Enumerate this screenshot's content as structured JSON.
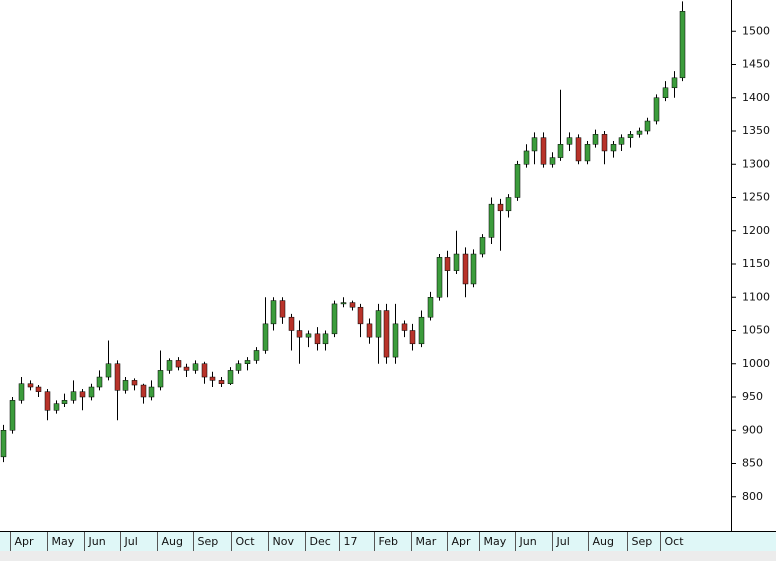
{
  "chart_data": {
    "type": "candlestick",
    "x": [
      2,
      7,
      12,
      17,
      22,
      27,
      32,
      37,
      42,
      47,
      52,
      57,
      62,
      67,
      72,
      77,
      82,
      87,
      92,
      97,
      102,
      107,
      112,
      117,
      122,
      127,
      132,
      137,
      142,
      147,
      152,
      157,
      162,
      167,
      172,
      177,
      182,
      187,
      192,
      197,
      202,
      207,
      212,
      217,
      222,
      227,
      232,
      237,
      242,
      247,
      252,
      257,
      262,
      267,
      272,
      277,
      282,
      287,
      292,
      297,
      302,
      307,
      312,
      317,
      322,
      327,
      332,
      337,
      342,
      347,
      352,
      357,
      362,
      367,
      372,
      377,
      382,
      387,
      392
    ],
    "open": [
      860,
      900,
      945,
      970,
      965,
      958,
      930,
      940,
      945,
      958,
      950,
      965,
      980,
      1000,
      960,
      975,
      968,
      950,
      965,
      990,
      1005,
      995,
      990,
      1000,
      980,
      975,
      970,
      990,
      1000,
      1005,
      1020,
      1060,
      1095,
      1070,
      1050,
      1040,
      1045,
      1030,
      1045,
      1090,
      1092,
      1085,
      1060,
      1040,
      1080,
      1010,
      1060,
      1050,
      1030,
      1070,
      1100,
      1160,
      1140,
      1165,
      1120,
      1165,
      1190,
      1240,
      1230,
      1250,
      1300,
      1320,
      1340,
      1300,
      1310,
      1330,
      1340,
      1305,
      1330,
      1345,
      1320,
      1330,
      1340,
      1345,
      1350,
      1365,
      1400,
      1415,
      1430
    ],
    "high": [
      908,
      950,
      980,
      975,
      968,
      962,
      945,
      955,
      975,
      962,
      970,
      990,
      1035,
      1005,
      980,
      978,
      970,
      975,
      1020,
      1008,
      1010,
      1000,
      1005,
      1003,
      988,
      980,
      995,
      1005,
      1010,
      1025,
      1100,
      1100,
      1100,
      1075,
      1065,
      1050,
      1055,
      1050,
      1095,
      1100,
      1095,
      1090,
      1068,
      1090,
      1090,
      1090,
      1065,
      1060,
      1080,
      1108,
      1165,
      1170,
      1200,
      1175,
      1172,
      1195,
      1250,
      1248,
      1255,
      1305,
      1330,
      1348,
      1348,
      1318,
      1412,
      1348,
      1345,
      1335,
      1352,
      1350,
      1335,
      1345,
      1350,
      1355,
      1370,
      1405,
      1425,
      1440,
      1545
    ],
    "low": [
      852,
      895,
      940,
      960,
      950,
      915,
      925,
      935,
      940,
      930,
      945,
      960,
      975,
      915,
      955,
      960,
      940,
      945,
      960,
      985,
      990,
      980,
      985,
      970,
      965,
      965,
      968,
      985,
      990,
      1000,
      1015,
      1050,
      1060,
      1020,
      1000,
      1025,
      1020,
      1020,
      1040,
      1085,
      1080,
      1040,
      1030,
      1000,
      1000,
      1000,
      1040,
      1020,
      1025,
      1065,
      1095,
      1100,
      1135,
      1100,
      1115,
      1160,
      1180,
      1170,
      1220,
      1245,
      1295,
      1300,
      1295,
      1295,
      1305,
      1320,
      1300,
      1300,
      1325,
      1300,
      1310,
      1320,
      1325,
      1340,
      1345,
      1360,
      1395,
      1400,
      1425
    ],
    "close": [
      900,
      945,
      970,
      965,
      958,
      930,
      940,
      945,
      958,
      950,
      965,
      980,
      1000,
      960,
      975,
      968,
      950,
      965,
      990,
      1005,
      995,
      990,
      1000,
      980,
      975,
      970,
      990,
      1000,
      1005,
      1020,
      1060,
      1095,
      1070,
      1050,
      1040,
      1045,
      1030,
      1045,
      1090,
      1092,
      1085,
      1060,
      1040,
      1080,
      1010,
      1060,
      1050,
      1030,
      1070,
      1100,
      1160,
      1140,
      1165,
      1120,
      1165,
      1190,
      1240,
      1230,
      1250,
      1300,
      1320,
      1340,
      1300,
      1310,
      1330,
      1340,
      1305,
      1330,
      1345,
      1320,
      1330,
      1340,
      1345,
      1350,
      1365,
      1400,
      1415,
      1430,
      1530
    ],
    "up_color": "#3c9c3c",
    "down_color": "#b8332a",
    "xlim": [
      0,
      420
    ],
    "xticks": [
      {
        "value": 6,
        "label": "Apr"
      },
      {
        "value": 27,
        "label": "May"
      },
      {
        "value": 48,
        "label": "Jun"
      },
      {
        "value": 69,
        "label": "Jul"
      },
      {
        "value": 90,
        "label": "Aug"
      },
      {
        "value": 111,
        "label": "Sep"
      },
      {
        "value": 133,
        "label": "Oct"
      },
      {
        "value": 154,
        "label": "Nov"
      },
      {
        "value": 175,
        "label": "Dec"
      },
      {
        "value": 195,
        "label": "17"
      },
      {
        "value": 215,
        "label": "Feb"
      },
      {
        "value": 236,
        "label": "Mar"
      },
      {
        "value": 257,
        "label": "Apr"
      },
      {
        "value": 275,
        "label": "May"
      },
      {
        "value": 296,
        "label": "Jun"
      },
      {
        "value": 317,
        "label": "Jul"
      },
      {
        "value": 338,
        "label": "Aug"
      },
      {
        "value": 360,
        "label": "Sep"
      },
      {
        "value": 379,
        "label": "Oct"
      }
    ],
    "ylim": [
      750,
      1547
    ],
    "yticks": [
      800,
      850,
      900,
      950,
      1000,
      1050,
      1100,
      1150,
      1200,
      1250,
      1300,
      1350,
      1400,
      1450,
      1500
    ]
  }
}
